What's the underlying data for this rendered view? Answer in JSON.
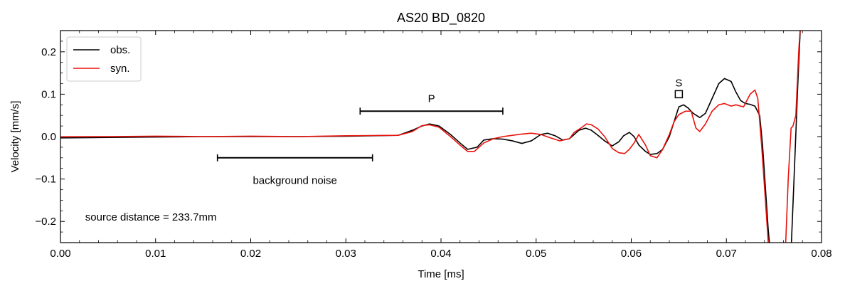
{
  "chart_data": {
    "type": "line",
    "title": "AS20 BD_0820",
    "xlabel": "Time [ms]",
    "ylabel": "Velocity [mm/s]",
    "xlim": [
      0.0,
      0.08
    ],
    "ylim": [
      -0.25,
      0.25
    ],
    "xticks": [
      0.0,
      0.01,
      0.02,
      0.03,
      0.04,
      0.05,
      0.06,
      0.07,
      0.08
    ],
    "xtick_labels": [
      "0.00",
      "0.01",
      "0.02",
      "0.03",
      "0.04",
      "0.05",
      "0.06",
      "0.07",
      "0.08"
    ],
    "yticks": [
      -0.2,
      -0.1,
      0.0,
      0.1,
      0.2
    ],
    "ytick_labels": [
      "−0.2",
      "−0.1",
      "0.0",
      "0.1",
      "0.2"
    ],
    "legend": {
      "placement": "top-left"
    },
    "grid": false,
    "series": [
      {
        "name": "obs.",
        "color": "#000000",
        "x": [
          0.0,
          0.005,
          0.01,
          0.015,
          0.02,
          0.025,
          0.03,
          0.0355,
          0.037,
          0.038,
          0.0388,
          0.0398,
          0.041,
          0.042,
          0.0428,
          0.0438,
          0.0445,
          0.0455,
          0.0465,
          0.0475,
          0.0485,
          0.0495,
          0.0505,
          0.0512,
          0.052,
          0.0528,
          0.0535,
          0.0545,
          0.0552,
          0.0558,
          0.0565,
          0.0572,
          0.058,
          0.0587,
          0.0592,
          0.0598,
          0.0603,
          0.0608,
          0.0615,
          0.062,
          0.0627,
          0.0633,
          0.064,
          0.0645,
          0.065,
          0.0655,
          0.066,
          0.0665,
          0.0672,
          0.0678,
          0.0685,
          0.0692,
          0.0698,
          0.0705,
          0.071,
          0.0715,
          0.072,
          0.0725,
          0.073,
          0.0735,
          0.0738,
          0.0741,
          0.0744,
          0.0746,
          0.0768,
          0.0772,
          0.0775,
          0.0778
        ],
        "y": [
          -0.003,
          -0.002,
          -0.001,
          0.0,
          0.0,
          0.0,
          0.001,
          0.003,
          0.015,
          0.025,
          0.03,
          0.025,
          0.005,
          -0.015,
          -0.03,
          -0.025,
          -0.008,
          -0.005,
          -0.006,
          -0.01,
          -0.016,
          -0.01,
          0.005,
          0.008,
          0.002,
          -0.008,
          -0.005,
          0.015,
          0.02,
          0.015,
          0.003,
          -0.01,
          -0.022,
          -0.012,
          0.002,
          0.01,
          0.0,
          -0.02,
          -0.035,
          -0.042,
          -0.04,
          -0.03,
          0.0,
          0.035,
          0.07,
          0.075,
          0.067,
          0.055,
          0.045,
          0.055,
          0.09,
          0.125,
          0.137,
          0.13,
          0.105,
          0.085,
          0.078,
          0.076,
          0.072,
          0.05,
          -0.02,
          -0.12,
          -0.22,
          -0.27,
          -0.27,
          -0.05,
          0.12,
          0.27
        ]
      },
      {
        "name": "syn.",
        "color": "#e8120c",
        "x": [
          0.0,
          0.005,
          0.01,
          0.015,
          0.02,
          0.025,
          0.03,
          0.0355,
          0.037,
          0.038,
          0.0388,
          0.0398,
          0.041,
          0.042,
          0.0428,
          0.0435,
          0.0445,
          0.0455,
          0.0465,
          0.0475,
          0.0485,
          0.0495,
          0.0505,
          0.0515,
          0.0525,
          0.0535,
          0.054,
          0.0547,
          0.0553,
          0.0558,
          0.0565,
          0.0572,
          0.058,
          0.0587,
          0.0593,
          0.0598,
          0.0603,
          0.0608,
          0.0615,
          0.062,
          0.0627,
          0.0633,
          0.064,
          0.0645,
          0.065,
          0.0657,
          0.0663,
          0.0668,
          0.0672,
          0.0678,
          0.0685,
          0.0692,
          0.0698,
          0.0705,
          0.071,
          0.0718,
          0.0725,
          0.073,
          0.0733,
          0.0737,
          0.0741,
          0.0744,
          0.0746,
          0.0762,
          0.0765,
          0.0768,
          0.077,
          0.0773,
          0.0776,
          0.0778
        ],
        "y": [
          0.0,
          0.0,
          0.001,
          0.0,
          0.001,
          0.0,
          0.002,
          0.003,
          0.012,
          0.026,
          0.028,
          0.022,
          0.0,
          -0.02,
          -0.035,
          -0.035,
          -0.015,
          -0.005,
          0.0,
          0.003,
          0.006,
          0.008,
          0.005,
          -0.003,
          -0.01,
          -0.005,
          0.01,
          0.02,
          0.03,
          0.028,
          0.018,
          0.0,
          -0.028,
          -0.038,
          -0.04,
          -0.03,
          -0.015,
          0.005,
          -0.02,
          -0.045,
          -0.05,
          -0.03,
          0.005,
          0.035,
          0.052,
          0.06,
          0.06,
          0.02,
          0.012,
          0.03,
          0.06,
          0.075,
          0.078,
          0.072,
          0.075,
          0.07,
          0.1,
          0.11,
          0.09,
          -0.02,
          -0.15,
          -0.25,
          -0.27,
          -0.27,
          -0.1,
          0.02,
          0.025,
          0.05,
          0.2,
          0.27
        ]
      }
    ],
    "annotations": [
      {
        "type": "window",
        "label": "background noise",
        "x_start": 0.0165,
        "x_end": 0.0328,
        "y": -0.05,
        "label_y": -0.103
      },
      {
        "type": "window",
        "label": "P",
        "x_start": 0.0315,
        "x_end": 0.0465,
        "y": 0.06,
        "label_y": 0.09
      },
      {
        "type": "marker",
        "label": "S",
        "x": 0.065,
        "y": 0.1,
        "label_y": 0.127
      },
      {
        "type": "text",
        "label": "source distance = 233.7mm",
        "x": 0.0026,
        "y": -0.19
      }
    ]
  }
}
